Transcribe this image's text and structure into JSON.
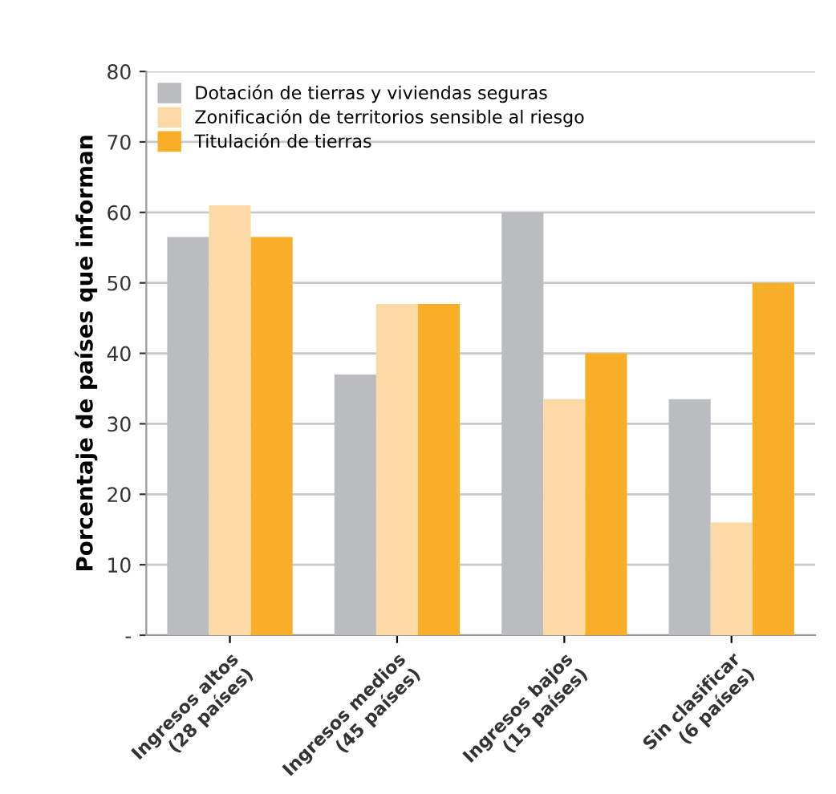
{
  "chart_data": {
    "type": "bar",
    "ylabel": "Porcentaje de países que informan",
    "categories": [
      "Ingresos altos\n(28 países)",
      "Ingresos medios\n(45 países)",
      "Ingresos bajos\n(15 países)",
      "Sin clasificar\n(6 países)"
    ],
    "series": [
      {
        "name": "Dotación de tierras y viviendas seguras",
        "color": "#bbbcc0",
        "values": [
          56.5,
          37,
          60,
          33.5
        ]
      },
      {
        "name": "Zonificación de territorios sensible al riesgo",
        "color": "#fdd9a6",
        "values": [
          61,
          47,
          33.5,
          16
        ]
      },
      {
        "name": "Titulación de tierras",
        "color": "#f9ae28",
        "values": [
          56.5,
          47,
          40,
          50
        ]
      }
    ],
    "ylim": [
      0,
      80
    ],
    "yticks": [
      {
        "value": 0,
        "label": "-"
      },
      10,
      20,
      30,
      40,
      50,
      60,
      70,
      80
    ],
    "grid": "y",
    "legend": "top left"
  }
}
